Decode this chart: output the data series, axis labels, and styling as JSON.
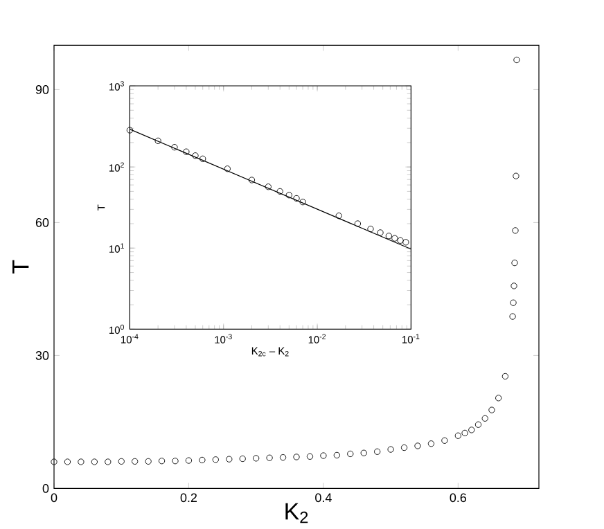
{
  "chart_data": [
    {
      "type": "scatter",
      "xlabel": "K$_{2}$",
      "ylabel": "T",
      "marker": "circle",
      "color": "#000000",
      "x": [
        0,
        0.02,
        0.04,
        0.06,
        0.08,
        0.1,
        0.12,
        0.14,
        0.16,
        0.18,
        0.2,
        0.22,
        0.24,
        0.26,
        0.28,
        0.3,
        0.32,
        0.34,
        0.36,
        0.38,
        0.4,
        0.42,
        0.44,
        0.46,
        0.48,
        0.5,
        0.52,
        0.54,
        0.56,
        0.58,
        0.6,
        0.61,
        0.62,
        0.63,
        0.64,
        0.65,
        0.66,
        0.67,
        0.681,
        0.682,
        0.683,
        0.684,
        0.685,
        0.686,
        0.687
      ],
      "values": [
        6.0,
        6.0,
        6.0,
        6.0,
        6.0,
        6.1,
        6.1,
        6.1,
        6.2,
        6.2,
        6.3,
        6.4,
        6.5,
        6.6,
        6.7,
        6.8,
        6.9,
        7.0,
        7.1,
        7.2,
        7.4,
        7.5,
        7.8,
        8.0,
        8.3,
        8.8,
        9.2,
        9.6,
        10.1,
        10.8,
        11.9,
        12.5,
        13.2,
        14.4,
        15.8,
        17.7,
        20.4,
        25.3,
        38.8,
        41.9,
        45.7,
        50.9,
        58.2,
        70.5,
        96.7
      ],
      "xlim": [
        0,
        0.72
      ],
      "ylim": [
        0,
        100
      ],
      "xticks": [
        0,
        0.2,
        0.4,
        0.6
      ],
      "yticks": [
        0,
        30,
        60,
        90
      ]
    },
    {
      "type": "scatter",
      "xlabel": "K$_{2c}$ – K$_{2}$",
      "ylabel": "T",
      "log": "xy",
      "xlim": [
        0.0001,
        0.1
      ],
      "ylim": [
        1,
        1000
      ],
      "xticks": [
        {
          "value": 0.0001,
          "label": "10$^{-4}$"
        },
        {
          "value": 0.001,
          "label": "10$^{-3}$"
        },
        {
          "value": 0.01,
          "label": "10$^{-2}$"
        },
        {
          "value": 0.1,
          "label": "10$^{-1}$"
        }
      ],
      "yticks": [
        {
          "value": 1,
          "label": "10$^{0}$"
        },
        {
          "value": 10,
          "label": "10$^{1}$"
        },
        {
          "value": 100,
          "label": "10$^{2}$"
        },
        {
          "value": 1000,
          "label": "10$^{3}$"
        }
      ],
      "series": [
        {
          "type": "scatter",
          "marker": "circle",
          "color": "#000000",
          "x": [
            0.0001,
            0.0002,
            0.0003,
            0.0004,
            0.0005,
            0.0006,
            0.0011,
            0.002,
            0.003,
            0.004,
            0.005,
            0.006,
            0.007,
            0.017,
            0.027,
            0.037,
            0.047,
            0.058,
            0.067,
            0.077,
            0.088
          ],
          "values": [
            284,
            210,
            175,
            154,
            138,
            126,
            95,
            69,
            57,
            50,
            45,
            41,
            37,
            25,
            20,
            17.2,
            15.5,
            14.1,
            13.2,
            12.4,
            11.8
          ]
        },
        {
          "type": "line",
          "line_style": "solid",
          "color": "#000000",
          "x": [
            0.0001,
            0.1
          ],
          "values": [
            292,
            9.7
          ]
        }
      ]
    }
  ]
}
